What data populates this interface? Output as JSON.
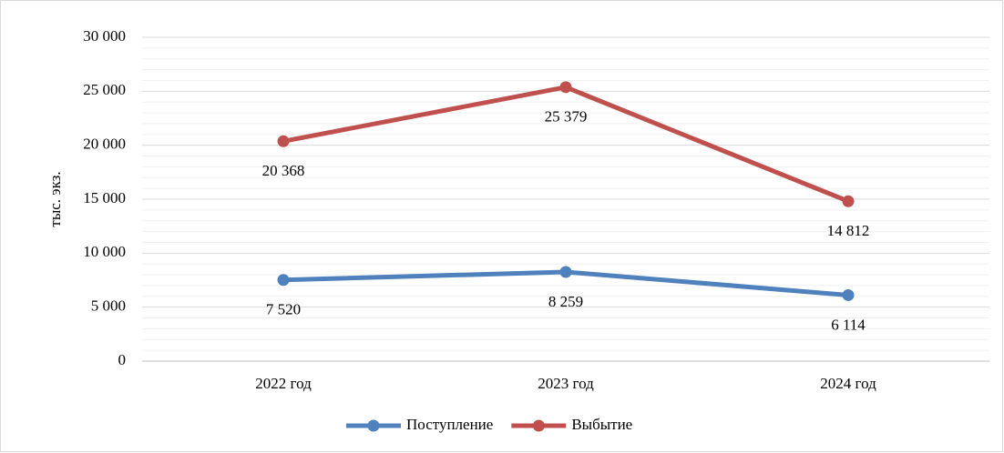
{
  "chart_data": {
    "type": "line",
    "ylabel": "тыс. экз.",
    "categories": [
      "2022 год",
      "2023 год",
      "2024 год"
    ],
    "series": [
      {
        "name": "Поступление",
        "color": "#4f81bd",
        "values": [
          7520,
          8259,
          6114
        ],
        "value_labels": [
          "7 520",
          "8 259",
          "6 114"
        ]
      },
      {
        "name": "Выбытие",
        "color": "#c0504d",
        "values": [
          20368,
          25379,
          14812
        ],
        "value_labels": [
          "20 368",
          "25 379",
          "14 812"
        ]
      }
    ],
    "ylim": [
      0,
      30000
    ],
    "yticks": [
      0,
      {
        "value": 5000,
        "label": "5 000"
      },
      {
        "value": 10000,
        "label": "10 000"
      },
      {
        "value": 15000,
        "label": "15 000"
      },
      {
        "value": 20000,
        "label": "20 000"
      },
      {
        "value": 25000,
        "label": "25 000"
      },
      {
        "value": 30000,
        "label": "30 000"
      }
    ],
    "yminorticks": [
      1000,
      2000,
      3000,
      4000,
      6000,
      7000,
      8000,
      9000,
      11000,
      12000,
      13000,
      14000,
      16000,
      17000,
      18000,
      19000,
      21000,
      22000,
      23000,
      24000,
      26000,
      27000,
      28000,
      29000
    ],
    "grid": true,
    "legend": "bottom"
  }
}
